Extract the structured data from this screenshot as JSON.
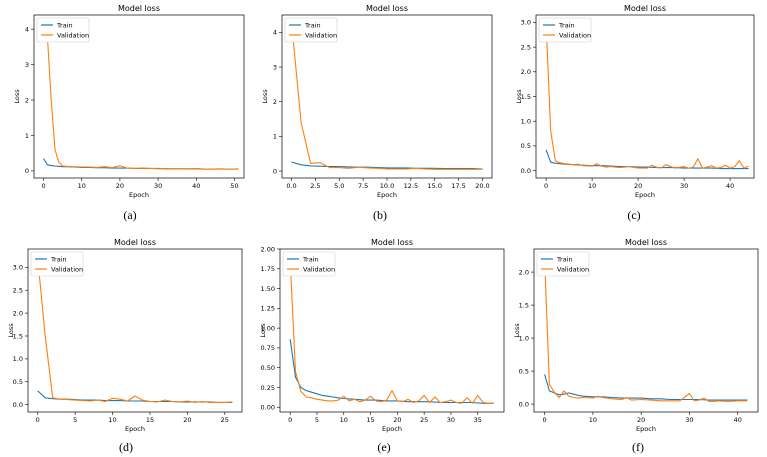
{
  "chart_data": [
    {
      "id": "a",
      "caption": "(a)",
      "type": "line",
      "title": "Model loss",
      "xlabel": "Epoch",
      "ylabel": "Loss",
      "xlim": [
        -2.5,
        52.5
      ],
      "ylim": [
        -0.2,
        4.4
      ],
      "xticks": [
        0,
        10,
        20,
        30,
        40,
        50
      ],
      "yticks": [
        0,
        1,
        2,
        3,
        4
      ],
      "legend": "top-left",
      "series": [
        {
          "name": "Train",
          "color": "#1f77b4",
          "x": [
            0,
            1,
            2,
            3,
            4,
            5,
            6,
            8,
            10,
            12,
            14,
            16,
            18,
            20,
            22,
            24,
            26,
            28,
            30,
            32,
            34,
            36,
            38,
            40,
            42,
            44,
            46,
            48,
            50,
            51
          ],
          "y": [
            0.35,
            0.17,
            0.15,
            0.14,
            0.13,
            0.12,
            0.12,
            0.11,
            0.1,
            0.1,
            0.09,
            0.09,
            0.08,
            0.08,
            0.08,
            0.07,
            0.07,
            0.07,
            0.07,
            0.06,
            0.06,
            0.06,
            0.06,
            0.06,
            0.05,
            0.05,
            0.05,
            0.05,
            0.05,
            0.05
          ]
        },
        {
          "name": "Validation",
          "color": "#ff7f0e",
          "x": [
            0,
            1,
            2,
            3,
            4,
            5,
            6,
            8,
            10,
            12,
            14,
            16,
            18,
            20,
            22,
            24,
            26,
            28,
            30,
            32,
            34,
            36,
            38,
            40,
            42,
            44,
            46,
            48,
            50,
            51
          ],
          "y": [
            4.1,
            3.8,
            2.0,
            0.6,
            0.25,
            0.14,
            0.13,
            0.12,
            0.11,
            0.11,
            0.1,
            0.12,
            0.09,
            0.15,
            0.08,
            0.07,
            0.08,
            0.07,
            0.06,
            0.07,
            0.06,
            0.06,
            0.05,
            0.07,
            0.05,
            0.05,
            0.06,
            0.05,
            0.05,
            0.06
          ]
        }
      ]
    },
    {
      "id": "b",
      "caption": "(b)",
      "type": "line",
      "title": "Model loss",
      "xlabel": "Epoch",
      "ylabel": "Loss",
      "xlim": [
        -1,
        21
      ],
      "ylim": [
        -0.2,
        4.5
      ],
      "xticks": [
        0.0,
        2.5,
        5.0,
        7.5,
        10.0,
        12.5,
        15.0,
        17.5,
        20.0
      ],
      "yticks": [
        0,
        1,
        2,
        3,
        4
      ],
      "legend": "top-left",
      "series": [
        {
          "name": "Train",
          "color": "#1f77b4",
          "x": [
            0,
            1,
            2,
            3,
            4,
            5,
            6,
            7,
            8,
            9,
            10,
            11,
            12,
            13,
            14,
            15,
            16,
            17,
            18,
            19,
            20
          ],
          "y": [
            0.26,
            0.18,
            0.15,
            0.14,
            0.13,
            0.13,
            0.12,
            0.11,
            0.11,
            0.1,
            0.09,
            0.09,
            0.09,
            0.08,
            0.08,
            0.08,
            0.07,
            0.07,
            0.07,
            0.07,
            0.06
          ]
        },
        {
          "name": "Validation",
          "color": "#ff7f0e",
          "x": [
            0,
            1,
            2,
            3,
            4,
            5,
            6,
            7,
            8,
            9,
            10,
            11,
            12,
            13,
            14,
            15,
            16,
            17,
            18,
            19,
            20
          ],
          "y": [
            4.3,
            1.4,
            0.22,
            0.24,
            0.1,
            0.1,
            0.08,
            0.11,
            0.09,
            0.08,
            0.06,
            0.06,
            0.06,
            0.08,
            0.06,
            0.05,
            0.05,
            0.05,
            0.05,
            0.05,
            0.05
          ]
        }
      ]
    },
    {
      "id": "c",
      "caption": "(c)",
      "type": "line",
      "title": "Model loss",
      "xlabel": "Epoch",
      "ylabel": "Loss",
      "xlim": [
        -2.2,
        45.2
      ],
      "ylim": [
        -0.15,
        3.15
      ],
      "xticks": [
        0,
        10,
        20,
        30,
        40
      ],
      "yticks": [
        0.0,
        0.5,
        1.0,
        1.5,
        2.0,
        2.5,
        3.0
      ],
      "legend": "top-left",
      "series": [
        {
          "name": "Train",
          "color": "#1f77b4",
          "x": [
            0,
            1,
            2,
            4,
            6,
            8,
            10,
            12,
            14,
            16,
            18,
            20,
            22,
            24,
            26,
            28,
            30,
            32,
            34,
            36,
            38,
            40,
            42,
            44
          ],
          "y": [
            0.42,
            0.17,
            0.15,
            0.13,
            0.12,
            0.11,
            0.1,
            0.1,
            0.09,
            0.08,
            0.08,
            0.07,
            0.07,
            0.06,
            0.06,
            0.06,
            0.05,
            0.05,
            0.05,
            0.05,
            0.04,
            0.04,
            0.04,
            0.04
          ]
        },
        {
          "name": "Validation",
          "color": "#ff7f0e",
          "x": [
            0,
            1,
            2,
            3,
            4,
            5,
            6,
            7,
            8,
            10,
            11,
            12,
            13,
            14,
            16,
            18,
            20,
            22,
            23,
            24,
            25,
            26,
            28,
            30,
            31,
            32,
            33,
            34,
            35,
            36,
            37,
            38,
            39,
            40,
            41,
            42,
            43,
            44
          ],
          "y": [
            3.0,
            0.8,
            0.2,
            0.16,
            0.14,
            0.13,
            0.12,
            0.13,
            0.1,
            0.09,
            0.14,
            0.09,
            0.07,
            0.08,
            0.06,
            0.08,
            0.05,
            0.05,
            0.11,
            0.07,
            0.05,
            0.12,
            0.05,
            0.08,
            0.05,
            0.07,
            0.24,
            0.05,
            0.07,
            0.1,
            0.05,
            0.06,
            0.11,
            0.05,
            0.08,
            0.2,
            0.05,
            0.09
          ]
        }
      ]
    },
    {
      "id": "d",
      "caption": "(d)",
      "type": "line",
      "title": "Model loss",
      "xlabel": "Epoch",
      "ylabel": "Loss",
      "xlim": [
        -1.3,
        27.3
      ],
      "ylim": [
        -0.16,
        3.4
      ],
      "xticks": [
        0,
        5,
        10,
        15,
        20,
        25
      ],
      "yticks": [
        0.0,
        0.5,
        1.0,
        1.5,
        2.0,
        2.5,
        3.0
      ],
      "legend": "top-left",
      "series": [
        {
          "name": "Train",
          "color": "#1f77b4",
          "x": [
            0,
            1,
            2,
            3,
            4,
            5,
            6,
            7,
            8,
            9,
            10,
            11,
            12,
            13,
            14,
            15,
            16,
            17,
            18,
            19,
            20,
            21,
            22,
            23,
            24,
            25,
            26
          ],
          "y": [
            0.3,
            0.15,
            0.13,
            0.12,
            0.12,
            0.11,
            0.1,
            0.1,
            0.1,
            0.09,
            0.09,
            0.09,
            0.08,
            0.08,
            0.08,
            0.07,
            0.07,
            0.07,
            0.07,
            0.06,
            0.06,
            0.06,
            0.06,
            0.06,
            0.05,
            0.05,
            0.05
          ]
        },
        {
          "name": "Validation",
          "color": "#ff7f0e",
          "x": [
            0,
            1,
            2,
            3,
            4,
            5,
            6,
            7,
            8,
            9,
            10,
            11,
            12,
            13,
            14,
            15,
            16,
            17,
            18,
            19,
            20,
            21,
            22,
            23,
            24,
            25,
            26
          ],
          "y": [
            3.2,
            1.5,
            0.15,
            0.12,
            0.11,
            0.1,
            0.09,
            0.08,
            0.1,
            0.07,
            0.14,
            0.12,
            0.08,
            0.19,
            0.1,
            0.07,
            0.06,
            0.1,
            0.07,
            0.06,
            0.08,
            0.05,
            0.07,
            0.05,
            0.05,
            0.05,
            0.06
          ]
        }
      ]
    },
    {
      "id": "e",
      "caption": "(e)",
      "type": "line",
      "title": "Model loss",
      "xlabel": "Epoch",
      "ylabel": "Loss",
      "xlim": [
        -1.9,
        39.9
      ],
      "ylim": [
        -0.06,
        2.0
      ],
      "xticks": [
        0,
        5,
        10,
        15,
        20,
        25,
        30,
        35
      ],
      "yticks": [
        0.0,
        0.25,
        0.5,
        0.75,
        1.0,
        1.25,
        1.5,
        1.75,
        2.0
      ],
      "legend": "top-left",
      "series": [
        {
          "name": "Train",
          "color": "#1f77b4",
          "x": [
            0,
            1,
            2,
            3,
            4,
            5,
            6,
            7,
            8,
            9,
            10,
            12,
            14,
            16,
            18,
            20,
            22,
            24,
            26,
            28,
            30,
            32,
            34,
            36,
            38
          ],
          "y": [
            0.86,
            0.38,
            0.25,
            0.21,
            0.19,
            0.17,
            0.15,
            0.14,
            0.13,
            0.12,
            0.11,
            0.1,
            0.09,
            0.09,
            0.08,
            0.08,
            0.07,
            0.07,
            0.07,
            0.06,
            0.06,
            0.06,
            0.06,
            0.05,
            0.05
          ]
        },
        {
          "name": "Validation",
          "color": "#ff7f0e",
          "x": [
            0,
            1,
            2,
            3,
            4,
            5,
            6,
            7,
            8,
            9,
            10,
            11,
            12,
            13,
            14,
            15,
            16,
            17,
            18,
            19,
            20,
            21,
            22,
            23,
            24,
            25,
            26,
            27,
            28,
            29,
            30,
            31,
            32,
            33,
            34,
            35,
            36,
            37,
            38
          ],
          "y": [
            1.85,
            0.45,
            0.2,
            0.13,
            0.12,
            0.1,
            0.09,
            0.08,
            0.08,
            0.09,
            0.14,
            0.08,
            0.1,
            0.07,
            0.09,
            0.14,
            0.08,
            0.07,
            0.09,
            0.21,
            0.08,
            0.07,
            0.1,
            0.06,
            0.08,
            0.15,
            0.06,
            0.13,
            0.06,
            0.07,
            0.09,
            0.06,
            0.05,
            0.12,
            0.05,
            0.15,
            0.06,
            0.05,
            0.05
          ]
        }
      ]
    },
    {
      "id": "f",
      "caption": "(f)",
      "type": "line",
      "title": "Model loss",
      "xlabel": "Epoch",
      "ylabel": "Loss",
      "xlim": [
        -2.2,
        44.2
      ],
      "ylim": [
        -0.12,
        2.35
      ],
      "xticks": [
        0,
        10,
        20,
        30,
        40
      ],
      "yticks": [
        0.0,
        0.5,
        1.0,
        1.5,
        2.0
      ],
      "legend": "top-left",
      "series": [
        {
          "name": "Train",
          "color": "#1f77b4",
          "x": [
            0,
            1,
            2,
            3,
            4,
            5,
            6,
            7,
            8,
            10,
            12,
            14,
            16,
            18,
            20,
            22,
            24,
            26,
            28,
            30,
            32,
            34,
            36,
            38,
            40,
            42
          ],
          "y": [
            0.45,
            0.2,
            0.17,
            0.14,
            0.15,
            0.17,
            0.15,
            0.13,
            0.12,
            0.11,
            0.11,
            0.1,
            0.09,
            0.09,
            0.09,
            0.08,
            0.08,
            0.07,
            0.07,
            0.07,
            0.07,
            0.06,
            0.06,
            0.06,
            0.06,
            0.06
          ]
        },
        {
          "name": "Validation",
          "color": "#ff7f0e",
          "x": [
            0,
            1,
            2,
            3,
            4,
            5,
            6,
            7,
            8,
            10,
            11,
            12,
            14,
            16,
            17,
            18,
            20,
            22,
            24,
            26,
            28,
            30,
            31,
            32,
            33,
            34,
            35,
            36,
            38,
            40,
            42
          ],
          "y": [
            2.2,
            0.3,
            0.18,
            0.1,
            0.2,
            0.12,
            0.1,
            0.09,
            0.1,
            0.09,
            0.12,
            0.1,
            0.08,
            0.07,
            0.1,
            0.06,
            0.07,
            0.06,
            0.05,
            0.05,
            0.05,
            0.16,
            0.05,
            0.06,
            0.09,
            0.04,
            0.04,
            0.05,
            0.04,
            0.05,
            0.05
          ]
        }
      ]
    }
  ]
}
